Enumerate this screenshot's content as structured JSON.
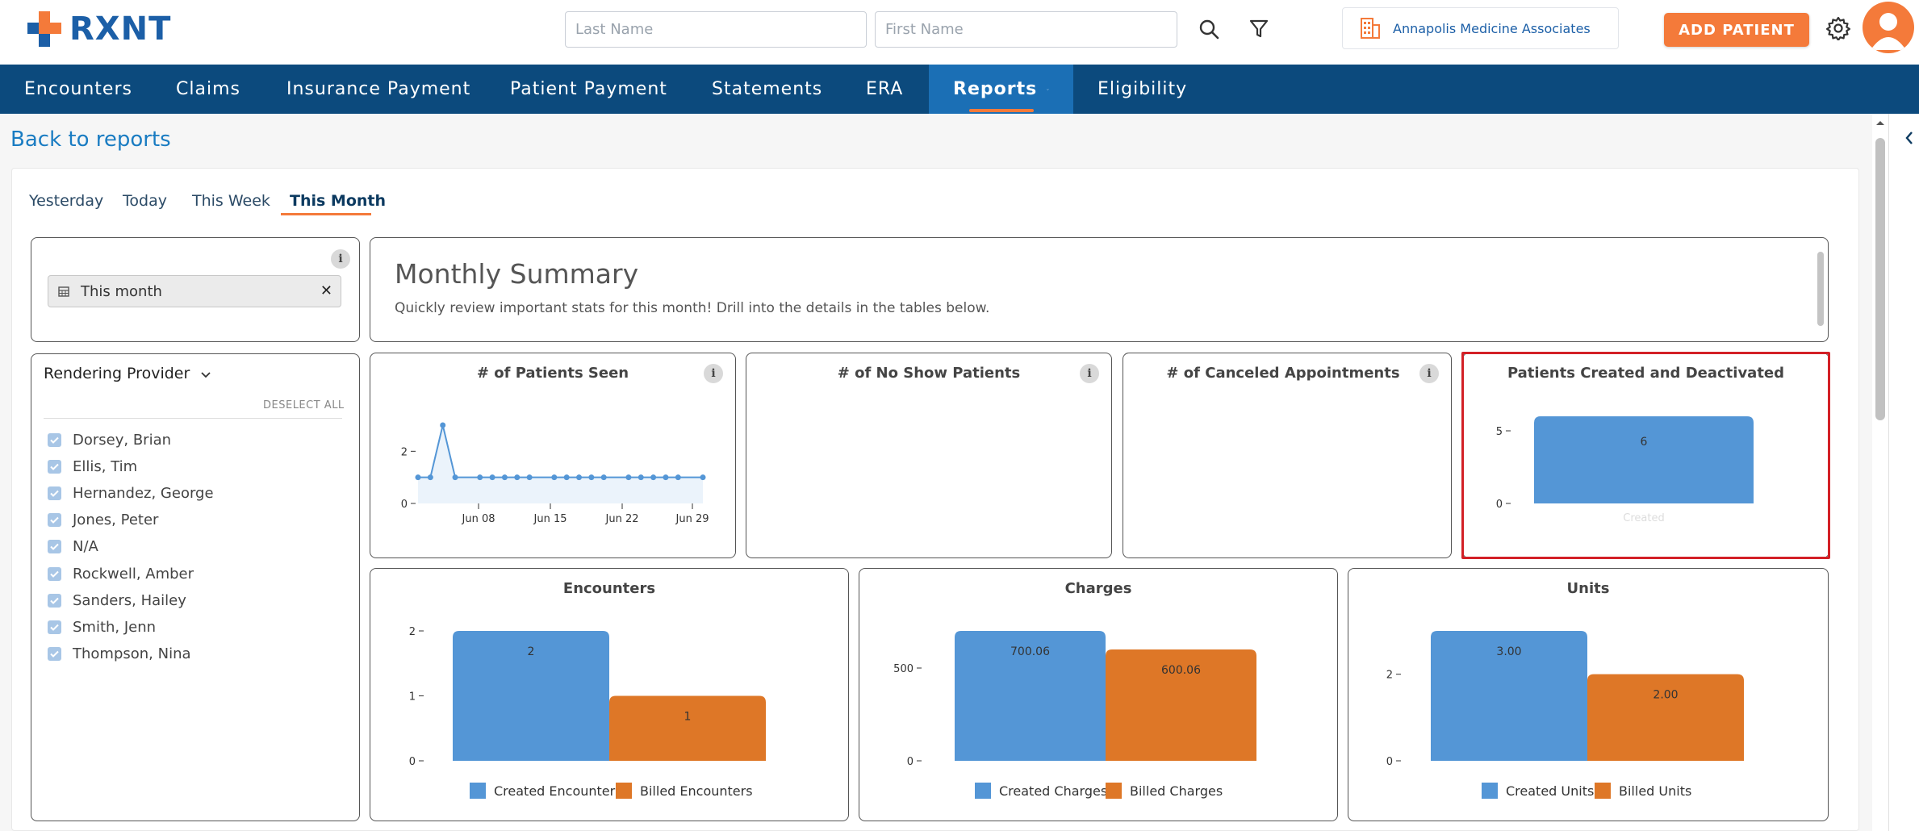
{
  "header": {
    "logo_text": "RXNT",
    "last_name_placeholder": "Last Name",
    "first_name_placeholder": "First Name",
    "practice_name": "Annapolis Medicine Associates",
    "add_patient_label": "ADD PATIENT"
  },
  "nav": {
    "items": [
      "Encounters",
      "Claims",
      "Insurance Payment",
      "Patient Payment",
      "Statements",
      "ERA",
      "Reports",
      "Eligibility"
    ],
    "active": "Reports"
  },
  "back_link": "Back to reports",
  "date_tabs": [
    "Yesterday",
    "Today",
    "This Week",
    "This Month"
  ],
  "active_tab": "This Month",
  "date_filter": {
    "chip_label": "This month",
    "info": "i"
  },
  "provider_filter": {
    "title": "Rendering Provider",
    "deselect_all": "DESELECT ALL",
    "providers": [
      "Dorsey, Brian",
      "Ellis, Tim",
      "Hernandez, George",
      "Jones, Peter",
      "N/A",
      "Rockwell, Amber",
      "Sanders, Hailey",
      "Smith, Jenn",
      "Thompson, Nina"
    ]
  },
  "summary": {
    "title": "Monthly Summary",
    "subtitle": "Quickly review important stats for this month! Drill into the details in the tables below."
  },
  "colors": {
    "blue": "#5496d6",
    "orange": "#de7727",
    "navy": "#0c4a7d",
    "accent": "#f47a3a"
  },
  "chart_data": [
    {
      "type": "line",
      "title": "# of Patients Seen",
      "x_ticks": [
        "Jun 08",
        "Jun 15",
        "Jun 22",
        "Jun 29"
      ],
      "y_ticks": [
        "0",
        "2"
      ],
      "ylim": [
        0,
        3
      ],
      "x": [
        1,
        2,
        3,
        4,
        6,
        7,
        8,
        9,
        10,
        12,
        13,
        14,
        15,
        16,
        18,
        19,
        20,
        21,
        22,
        24
      ],
      "values": [
        1,
        1,
        3,
        1,
        1,
        1,
        1,
        1,
        1,
        1,
        1,
        1,
        1,
        1,
        1,
        1,
        1,
        1,
        1,
        1
      ]
    },
    {
      "type": "line",
      "title": "# of No Show Patients"
    },
    {
      "type": "line",
      "title": "# of Canceled Appointments"
    },
    {
      "type": "bar",
      "title": "Patients Created and Deactivated",
      "categories": [
        "Created"
      ],
      "values": [
        6
      ],
      "data_labels": [
        "6"
      ],
      "y_ticks": [
        "0",
        "5"
      ],
      "ylim": [
        0,
        6
      ]
    },
    {
      "type": "bar",
      "title": "Encounters",
      "series": [
        {
          "name": "Created Encounters",
          "values": [
            2
          ],
          "label": "2"
        },
        {
          "name": "Billed Encounters",
          "values": [
            1
          ],
          "label": "1"
        }
      ],
      "y_ticks": [
        "0",
        "1",
        "2"
      ],
      "ylim": [
        0,
        2
      ]
    },
    {
      "type": "bar",
      "title": "Charges",
      "series": [
        {
          "name": "Created Charges",
          "values": [
            700.06
          ],
          "label": "700.06"
        },
        {
          "name": "Billed Charges",
          "values": [
            600.06
          ],
          "label": "600.06"
        }
      ],
      "y_ticks": [
        "0",
        "500"
      ],
      "ylim": [
        0,
        700.06
      ]
    },
    {
      "type": "bar",
      "title": "Units",
      "series": [
        {
          "name": "Created Units",
          "values": [
            3.0
          ],
          "label": "3.00"
        },
        {
          "name": "Billed Units",
          "values": [
            2.0
          ],
          "label": "2.00"
        }
      ],
      "y_ticks": [
        "0",
        "2"
      ],
      "ylim": [
        0,
        3
      ]
    }
  ]
}
